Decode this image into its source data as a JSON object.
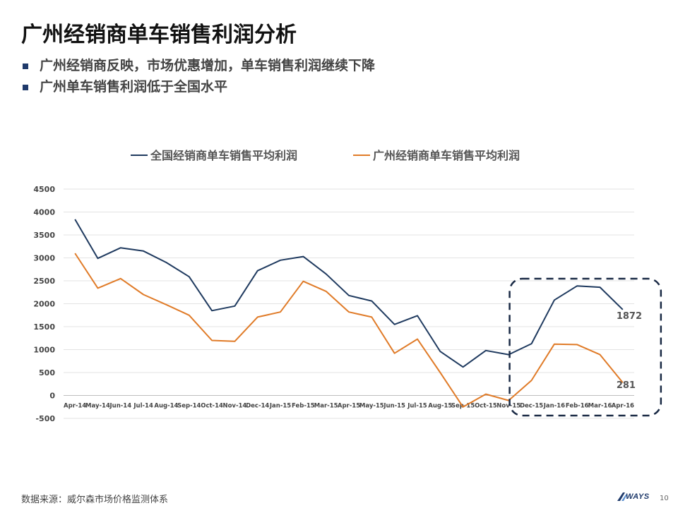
{
  "slide": {
    "title": "广州经销商单车销售利润分析",
    "bullets": [
      "广州经销商反映，市场优惠增加，单车销售利润继续下降",
      "广州单车销售利润低于全国水平"
    ],
    "source": "数据来源：威尔森市场价格监测体系",
    "logo_text": "WAYS",
    "page_number": "10",
    "bullet_color": "#1f3a6b"
  },
  "chart_data": {
    "type": "line",
    "title": "",
    "xlabel": "",
    "ylabel": "",
    "ylim": [
      -500,
      4500
    ],
    "yticks": [
      -500,
      0,
      500,
      1000,
      1500,
      2000,
      2500,
      3000,
      3500,
      4000,
      4500
    ],
    "grid": true,
    "legend_position": "top",
    "categories": [
      "Apr-14",
      "May-14",
      "Jun-14",
      "Jul-14",
      "Aug-14",
      "Sep-14",
      "Oct-14",
      "Nov-14",
      "Dec-14",
      "Jan-15",
      "Feb-15",
      "Mar-15",
      "Apr-15",
      "May-15",
      "Jun-15",
      "Jul-15",
      "Aug-15",
      "Sep-15",
      "Oct-15",
      "Nov-15",
      "Dec-15",
      "Jan-16",
      "Feb-16",
      "Mar-16",
      "Apr-16"
    ],
    "series": [
      {
        "name": "全国经销商单车销售平均利润",
        "color": "#1f3a5f",
        "values": [
          3840,
          2990,
          3220,
          3150,
          2900,
          2590,
          1850,
          1950,
          2720,
          2950,
          3030,
          2650,
          2180,
          2060,
          1550,
          1740,
          960,
          620,
          980,
          890,
          1130,
          2080,
          2390,
          2360,
          1872
        ]
      },
      {
        "name": "广州经销商单车销售平均利润",
        "color": "#e07b28",
        "values": [
          3100,
          2340,
          2550,
          2200,
          1980,
          1750,
          1200,
          1180,
          1710,
          1820,
          2490,
          2270,
          1820,
          1710,
          920,
          1230,
          500,
          -250,
          30,
          -110,
          330,
          1120,
          1110,
          890,
          281
        ]
      }
    ],
    "annotations": [
      {
        "text": "1872",
        "category": "Apr-16",
        "series": 0
      },
      {
        "text": "281",
        "category": "Apr-16",
        "series": 1
      },
      {
        "type": "dashed-box",
        "from": "Dec-15",
        "to": "Apr-16"
      }
    ]
  }
}
